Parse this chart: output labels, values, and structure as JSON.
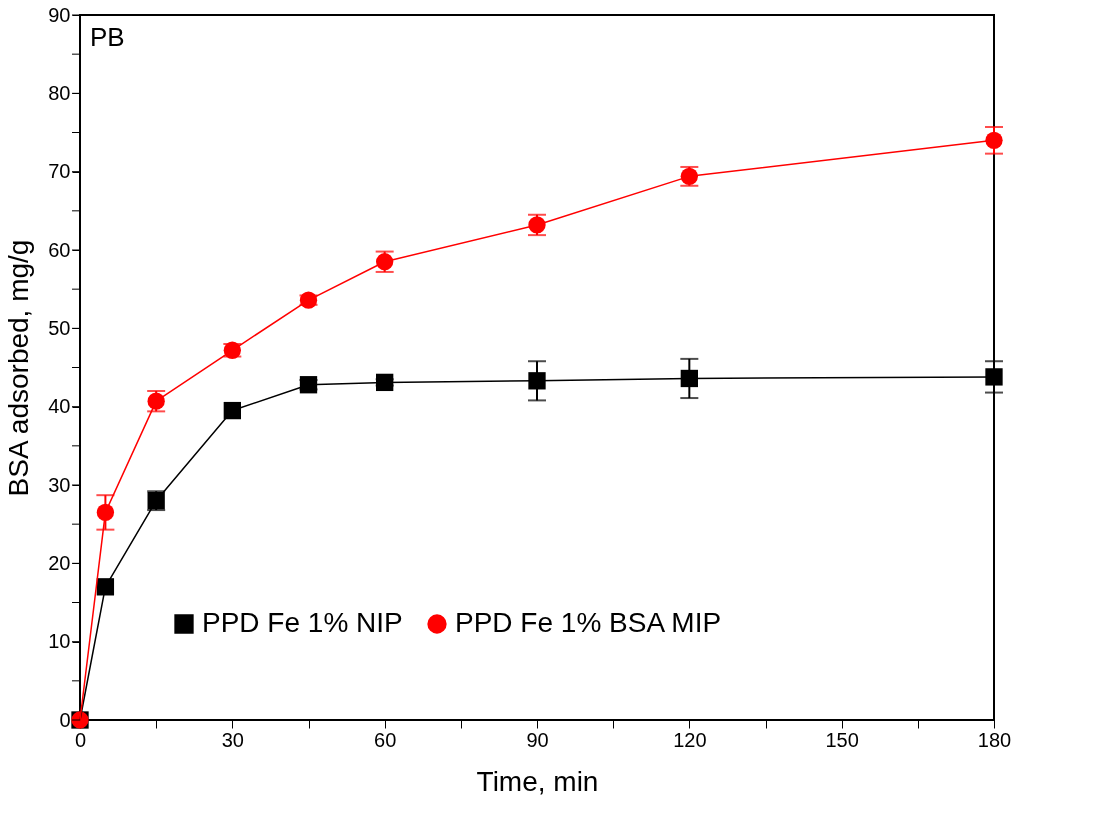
{
  "chart_data": {
    "type": "line",
    "xlabel": "Time, min",
    "ylabel": "BSA adsorbed, mg/g",
    "annotations": [
      "PB"
    ],
    "xlim": [
      0,
      180
    ],
    "xticks": [
      0,
      {
        "value": 15,
        "label": null
      },
      30,
      {
        "value": 45,
        "label": null
      },
      60,
      {
        "value": 75,
        "label": null
      },
      90,
      {
        "value": 105,
        "label": null
      },
      120,
      {
        "value": 135,
        "label": null
      },
      150,
      {
        "value": 165,
        "label": null
      },
      180
    ],
    "ylim": [
      0,
      90
    ],
    "yticks": [
      0,
      {
        "value": 5,
        "label": null
      },
      10,
      {
        "value": 15,
        "label": null
      },
      20,
      {
        "value": 25,
        "label": null
      },
      30,
      {
        "value": 35,
        "label": null
      },
      40,
      {
        "value": 45,
        "label": null
      },
      50,
      {
        "value": 55,
        "label": null
      },
      60,
      {
        "value": 65,
        "label": null
      },
      70,
      {
        "value": 75,
        "label": null
      },
      80,
      {
        "value": 85,
        "label": null
      },
      90
    ],
    "x": [
      0,
      5,
      15,
      30,
      45,
      60,
      90,
      120,
      180
    ],
    "grid": false,
    "legend": "bottom",
    "line_style": "solid",
    "series": [
      {
        "name": "PPD Fe 1% NIP",
        "color": "#000000",
        "marker": "square",
        "values": [
          0,
          17,
          28,
          39.5,
          42.8,
          43.1,
          43.3,
          43.6,
          43.8
        ],
        "errors": [
          null,
          null,
          1.2,
          null,
          0.6,
          0.4,
          2.5,
          2.5,
          2
        ]
      },
      {
        "name": "PPD Fe 1% BSA MIP",
        "color": "#ff0000",
        "marker": "circle",
        "values": [
          0,
          26.5,
          40.7,
          47.2,
          53.6,
          58.5,
          63.2,
          69.4,
          74
        ],
        "errors": [
          null,
          2.2,
          1.3,
          0.8,
          0.6,
          1.3,
          1.3,
          1.2,
          1.7
        ]
      }
    ]
  }
}
